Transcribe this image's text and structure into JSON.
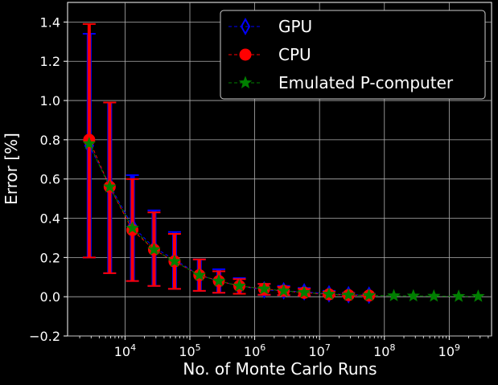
{
  "chart_data": {
    "type": "scatter",
    "title": "",
    "xlabel": "No. of Monte Carlo Runs",
    "ylabel": "Error [%]",
    "xscale": "log",
    "xlim": [
      1300,
      4500000000
    ],
    "ylim": [
      -0.2,
      1.5
    ],
    "grid": true,
    "legend_position": "top-right",
    "y_ticks": [
      "−0.2",
      "0.0",
      "0.2",
      "0.4",
      "0.6",
      "0.8",
      "1.0",
      "1.2",
      "1.4"
    ],
    "x_ticks": [
      {
        "base": "10",
        "exp": "4"
      },
      {
        "base": "10",
        "exp": "5"
      },
      {
        "base": "10",
        "exp": "6"
      },
      {
        "base": "10",
        "exp": "7"
      },
      {
        "base": "10",
        "exp": "8"
      },
      {
        "base": "10",
        "exp": "9"
      }
    ],
    "series": [
      {
        "name": "GPU",
        "color": "#0000ff",
        "marker": "thin-diamond",
        "x": [
          2800,
          5800,
          13000,
          28000,
          58000,
          140000,
          280000,
          580000,
          1400000,
          2800000,
          5800000,
          14000000,
          28000000,
          58000000
        ],
        "y": [
          0.77,
          0.57,
          0.36,
          0.25,
          0.19,
          0.11,
          0.08,
          0.055,
          0.035,
          0.03,
          0.025,
          0.015,
          0.01,
          0.008
        ],
        "err_low": [
          0.2,
          0.12,
          0.08,
          0.055,
          0.04,
          0.03,
          0.02,
          0.015,
          0.01,
          0.008,
          0.006,
          0.005,
          0.004,
          0.003
        ],
        "err_high": [
          1.34,
          0.99,
          0.62,
          0.44,
          0.33,
          0.19,
          0.14,
          0.095,
          0.065,
          0.055,
          0.045,
          0.03,
          0.02,
          0.015
        ]
      },
      {
        "name": "CPU",
        "color": "#ff0000",
        "marker": "circle",
        "x": [
          2800,
          5800,
          13000,
          28000,
          58000,
          140000,
          280000,
          580000,
          1400000,
          2800000,
          5800000,
          14000000,
          28000000,
          58000000
        ],
        "y": [
          0.8,
          0.56,
          0.34,
          0.24,
          0.18,
          0.11,
          0.08,
          0.055,
          0.04,
          0.03,
          0.02,
          0.012,
          0.008,
          0.006
        ],
        "err_low": [
          0.2,
          0.12,
          0.08,
          0.055,
          0.04,
          0.03,
          0.02,
          0.015,
          0.01,
          0.008,
          0.006,
          0.005,
          0.004,
          0.003
        ],
        "err_high": [
          1.39,
          0.99,
          0.6,
          0.43,
          0.32,
          0.19,
          0.13,
          0.09,
          0.065,
          0.05,
          0.04,
          0.025,
          0.018,
          0.012
        ]
      },
      {
        "name": "Emulated P-computer",
        "color": "#008000",
        "marker": "star",
        "x": [
          2800,
          5800,
          13000,
          28000,
          58000,
          140000,
          280000,
          580000,
          1400000,
          2800000,
          5800000,
          14000000,
          28000000,
          58000000,
          140000000,
          280000000,
          580000000,
          1400000000,
          2800000000
        ],
        "y": [
          0.78,
          0.56,
          0.35,
          0.24,
          0.18,
          0.11,
          0.08,
          0.055,
          0.04,
          0.03,
          0.022,
          0.013,
          0.009,
          0.007,
          0.005,
          0.004,
          0.003,
          0.002,
          0.002
        ],
        "err_low": [],
        "err_high": []
      }
    ]
  }
}
